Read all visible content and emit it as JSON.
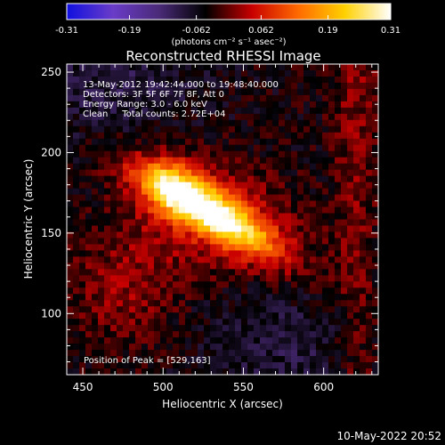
{
  "chart_data": {
    "type": "heatmap",
    "title": "Reconstructed RHESSI Image",
    "xlabel": "Heliocentric X (arcsec)",
    "ylabel": "Heliocentric Y (arcsec)",
    "xlim": [
      440,
      634
    ],
    "ylim": [
      62,
      255
    ],
    "x_ticks": [
      450,
      500,
      550,
      600
    ],
    "y_ticks": [
      100,
      150,
      200,
      250
    ],
    "colorbar": {
      "colormap": "hot-metal",
      "colors": [
        "#1010e0",
        "#6a3cc8",
        "#4a2a78",
        "#000000",
        "#c80000",
        "#ff6a00",
        "#ffd000",
        "#ffffff"
      ],
      "range": [
        -0.31,
        0.31
      ],
      "tick_labels": [
        "-0.31",
        "-0.19",
        "-0.062",
        "0.062",
        "0.19",
        "0.31"
      ],
      "unit_label": "(photons cm⁻² s⁻¹ asec⁻²)"
    },
    "annotations": [
      "13-May-2012 19:42:44.000 to 19:48:40.000",
      "Detectors: 3F 5F 6F 7F 8F, Att 0",
      "Energy Range: 3.0 - 6.0 keV",
      "Clean     Total counts: 2.72E+04"
    ],
    "peak_label": "Position of Peak = [529,163]",
    "peak": {
      "x": 529,
      "y": 163,
      "value": 0.31
    },
    "source": {
      "center_x": 528,
      "center_y": 164,
      "orientation_deg": -30
    },
    "footer_date": "10-May-2022 20:52"
  }
}
